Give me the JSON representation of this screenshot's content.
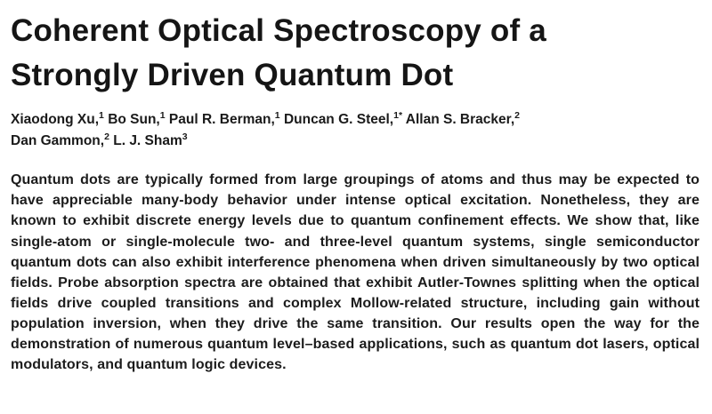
{
  "paper": {
    "title_lines": [
      "Coherent Optical Spectroscopy of a",
      "Strongly Driven Quantum Dot"
    ],
    "authors": [
      {
        "name": "Xiaodong Xu,",
        "sup": "1",
        "break_after": false
      },
      {
        "name": "Bo Sun,",
        "sup": "1",
        "break_after": false
      },
      {
        "name": "Paul R. Berman,",
        "sup": "1",
        "break_after": false
      },
      {
        "name": "Duncan G. Steel,",
        "sup": "1*",
        "break_after": false
      },
      {
        "name": "Allan S. Bracker,",
        "sup": "2",
        "break_after": true
      },
      {
        "name": "Dan Gammon,",
        "sup": "2",
        "break_after": false
      },
      {
        "name": "L. J. Sham",
        "sup": "3",
        "break_after": false
      }
    ],
    "abstract": "Quantum dots are typically formed from large groupings of atoms and thus may be expected to have appreciable many-body behavior under intense optical excitation. Nonetheless, they are known to exhibit discrete energy levels due to quantum confinement effects. We show that, like single-atom or single-molecule two- and three-level quantum systems, single semiconductor quantum dots can also exhibit interference phenomena when driven simultaneously by two optical fields. Probe absorption spectra are obtained that exhibit Autler-Townes splitting when the optical fields drive coupled transitions and complex Mollow-related structure, including gain without population inversion, when they drive the same transition. Our results open the way for the demonstration of numerous quantum level–based applications, such as quantum dot lasers, optical modulators, and quantum logic devices."
  },
  "colors": {
    "text": "#111111",
    "background": "#ffffff"
  }
}
